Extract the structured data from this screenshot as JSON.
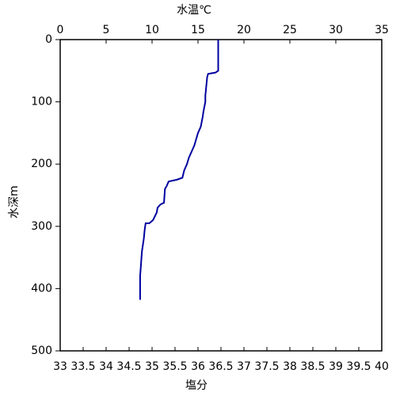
{
  "chart_data": {
    "type": "line",
    "x_label": "水温℃",
    "x_label_color": "#0000aa",
    "x2_label": "塩分",
    "x2_label_color": "#cc0000",
    "y_label": "水深m",
    "xlim": [
      0,
      35
    ],
    "xticks": [
      0,
      5,
      10,
      15,
      20,
      25,
      30,
      35
    ],
    "x2lim": [
      33,
      40
    ],
    "x2ticks": [
      33,
      33.5,
      34,
      34.5,
      35,
      35.5,
      36,
      36.5,
      37,
      37.5,
      38,
      38.5,
      39,
      39.5,
      40
    ],
    "ylim": [
      0,
      500
    ],
    "yticks": [
      0,
      100,
      200,
      300,
      400,
      500
    ],
    "y_inverted": true,
    "series": [
      {
        "color": "#0000a0",
        "x": [
          17.2,
          17.2,
          16.9,
          16.1,
          16.0,
          15.9,
          15.8,
          15.8,
          15.6,
          15.5,
          15.3,
          15.0,
          14.8,
          14.6,
          14.3,
          14.0,
          13.8,
          13.5,
          13.3,
          12.7,
          11.8,
          11.6,
          11.4,
          11.3,
          10.9,
          10.6,
          10.5,
          10.1,
          9.7,
          9.3,
          9.2,
          9.1,
          8.9,
          8.8,
          8.7,
          8.7
        ],
        "y": [
          0,
          50,
          53,
          55,
          60,
          75,
          90,
          100,
          115,
          125,
          140,
          150,
          160,
          170,
          180,
          190,
          200,
          210,
          222,
          225,
          228,
          235,
          240,
          262,
          265,
          270,
          278,
          290,
          295,
          295,
          305,
          320,
          340,
          360,
          380,
          418
        ]
      }
    ]
  }
}
